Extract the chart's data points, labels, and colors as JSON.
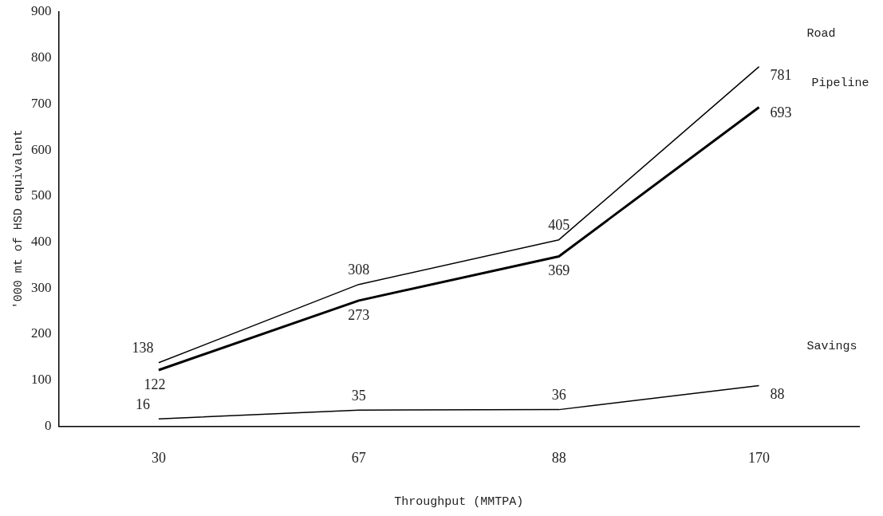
{
  "chart_data": {
    "type": "line",
    "xlabel": "Throughput (MMTPA)",
    "ylabel": "'000 mt of HSD equivalent",
    "categories": [
      "30",
      "67",
      "88",
      "170"
    ],
    "series": [
      {
        "name": "Road",
        "color": "#000000",
        "values": [
          138,
          308,
          405,
          781
        ]
      },
      {
        "name": "Pipeline",
        "color": "#000000",
        "values": [
          122,
          273,
          369,
          693
        ]
      },
      {
        "name": "Savings",
        "color": "#000000",
        "values": [
          16,
          35,
          36,
          88
        ]
      }
    ],
    "ylim": [
      0,
      900
    ],
    "yticks": [
      0,
      100,
      200,
      300,
      400,
      500,
      600,
      700,
      800,
      900
    ],
    "grid": false,
    "legend": false,
    "marker": "none",
    "line_style": "solid",
    "data_labels": true
  }
}
